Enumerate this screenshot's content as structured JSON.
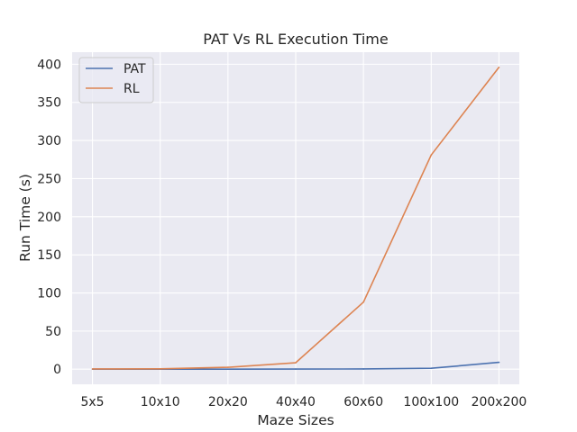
{
  "chart_data": {
    "type": "line",
    "title": "PAT Vs RL Execution Time",
    "xlabel": "Maze Sizes",
    "ylabel": "Run Time (s)",
    "categories": [
      "5x5",
      "10x10",
      "20x20",
      "40x40",
      "60x60",
      "100x100",
      "200x200"
    ],
    "yticks": [
      0,
      50,
      100,
      150,
      200,
      250,
      300,
      350,
      400
    ],
    "ylim": [
      -19.8,
      415.8
    ],
    "grid": true,
    "legend_position": "top-left",
    "series": [
      {
        "name": "PAT",
        "color": "#4c72b0",
        "values": [
          0,
          0,
          0.1,
          0.2,
          0.3,
          1.2,
          9
        ]
      },
      {
        "name": "RL",
        "color": "#dd8452",
        "values": [
          0.3,
          0.5,
          2.5,
          8.5,
          88,
          281,
          396
        ]
      }
    ]
  }
}
